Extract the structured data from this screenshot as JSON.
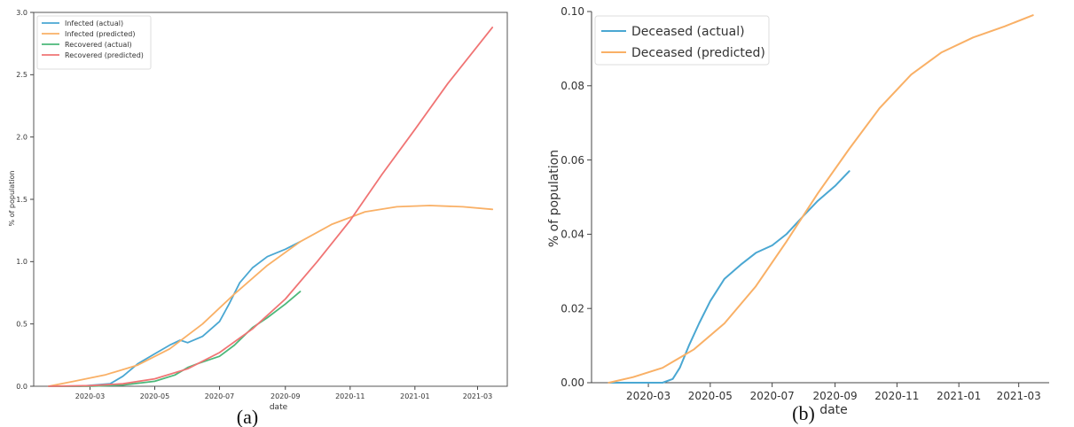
{
  "panel_labels": [
    "(a)",
    "(b)"
  ],
  "chart_data": [
    {
      "type": "line",
      "panel": "(a)",
      "title": "",
      "xlabel": "date",
      "ylabel": "% of population",
      "ylim": [
        0,
        3.0
      ],
      "y_ticks": [
        0.0,
        0.5,
        1.0,
        1.5,
        2.0,
        2.5,
        3.0
      ],
      "y_tick_labels": [
        "0.0",
        "0.5",
        "1.0",
        "1.5",
        "2.0",
        "2.5",
        "3.0"
      ],
      "x_tick_labels": [
        "2020-03",
        "2020-05",
        "2020-07",
        "2020-09",
        "2020-11",
        "2021-01",
        "2021-03"
      ],
      "grid": false,
      "legend_position": "top-left",
      "series": [
        {
          "name": "Infected (actual)",
          "color": "#4aa7d2",
          "x": [
            "2020-01-22",
            "2020-02-20",
            "2020-03-20",
            "2020-04-01",
            "2020-04-15",
            "2020-05-01",
            "2020-05-15",
            "2020-05-25",
            "2020-06-01",
            "2020-06-15",
            "2020-07-01",
            "2020-07-10",
            "2020-07-20",
            "2020-08-01",
            "2020-08-15",
            "2020-09-01",
            "2020-09-15"
          ],
          "values": [
            0.0,
            0.0,
            0.02,
            0.08,
            0.18,
            0.26,
            0.33,
            0.37,
            0.35,
            0.4,
            0.52,
            0.66,
            0.83,
            0.95,
            1.04,
            1.1,
            1.16
          ]
        },
        {
          "name": "Infected (predicted)",
          "color": "#f9b066",
          "x": [
            "2020-01-22",
            "2020-02-15",
            "2020-03-15",
            "2020-04-15",
            "2020-05-15",
            "2020-06-15",
            "2020-07-15",
            "2020-08-15",
            "2020-09-15",
            "2020-10-15",
            "2020-11-15",
            "2020-12-15",
            "2021-01-15",
            "2021-02-15",
            "2021-03-15"
          ],
          "values": [
            0.0,
            0.04,
            0.09,
            0.17,
            0.3,
            0.5,
            0.74,
            0.97,
            1.16,
            1.3,
            1.4,
            1.44,
            1.45,
            1.44,
            1.42
          ]
        },
        {
          "name": "Recovered (actual)",
          "color": "#4cb87a",
          "x": [
            "2020-01-22",
            "2020-03-01",
            "2020-04-01",
            "2020-05-01",
            "2020-05-20",
            "2020-06-01",
            "2020-06-10",
            "2020-07-01",
            "2020-07-15",
            "2020-08-01",
            "2020-08-15",
            "2020-09-01",
            "2020-09-15"
          ],
          "values": [
            0.0,
            0.0,
            0.01,
            0.04,
            0.09,
            0.15,
            0.18,
            0.24,
            0.33,
            0.47,
            0.55,
            0.66,
            0.76
          ]
        },
        {
          "name": "Recovered (predicted)",
          "color": "#f07474",
          "x": [
            "2020-01-22",
            "2020-03-01",
            "2020-04-01",
            "2020-05-01",
            "2020-06-01",
            "2020-07-01",
            "2020-08-01",
            "2020-09-01",
            "2020-10-01",
            "2020-11-01",
            "2020-12-01",
            "2021-01-01",
            "2021-02-01",
            "2021-03-15"
          ],
          "values": [
            0.0,
            0.005,
            0.02,
            0.06,
            0.14,
            0.27,
            0.46,
            0.7,
            1.0,
            1.33,
            1.7,
            2.06,
            2.43,
            2.88
          ]
        }
      ]
    },
    {
      "type": "line",
      "panel": "(b)",
      "title": "",
      "xlabel": "date",
      "ylabel": "% of population",
      "ylim": [
        0,
        0.1
      ],
      "y_ticks": [
        0.0,
        0.02,
        0.04,
        0.06,
        0.08,
        0.1
      ],
      "y_tick_labels": [
        "0.00",
        "0.02",
        "0.04",
        "0.06",
        "0.08",
        "0.10"
      ],
      "x_tick_labels": [
        "2020-03",
        "2020-05",
        "2020-07",
        "2020-09",
        "2020-11",
        "2021-01",
        "2021-03"
      ],
      "grid": false,
      "legend_position": "top-left",
      "series": [
        {
          "name": "Deceased (actual)",
          "color": "#4aa7d2",
          "x": [
            "2020-01-22",
            "2020-02-15",
            "2020-03-15",
            "2020-03-25",
            "2020-04-01",
            "2020-04-10",
            "2020-04-20",
            "2020-05-01",
            "2020-05-15",
            "2020-06-01",
            "2020-06-15",
            "2020-07-01",
            "2020-07-15",
            "2020-08-01",
            "2020-08-15",
            "2020-09-01",
            "2020-09-15"
          ],
          "values": [
            0.0,
            0.0,
            0.0,
            0.001,
            0.004,
            0.01,
            0.016,
            0.022,
            0.028,
            0.032,
            0.035,
            0.037,
            0.04,
            0.045,
            0.049,
            0.053,
            0.057
          ]
        },
        {
          "name": "Deceased (predicted)",
          "color": "#f9b066",
          "x": [
            "2020-01-22",
            "2020-02-15",
            "2020-03-15",
            "2020-04-15",
            "2020-05-15",
            "2020-06-15",
            "2020-07-15",
            "2020-08-15",
            "2020-09-15",
            "2020-10-15",
            "2020-11-15",
            "2020-12-15",
            "2021-01-15",
            "2021-02-15",
            "2021-03-15"
          ],
          "values": [
            0.0,
            0.0015,
            0.004,
            0.009,
            0.016,
            0.026,
            0.038,
            0.051,
            0.063,
            0.074,
            0.083,
            0.089,
            0.093,
            0.096,
            0.099
          ]
        }
      ]
    }
  ]
}
